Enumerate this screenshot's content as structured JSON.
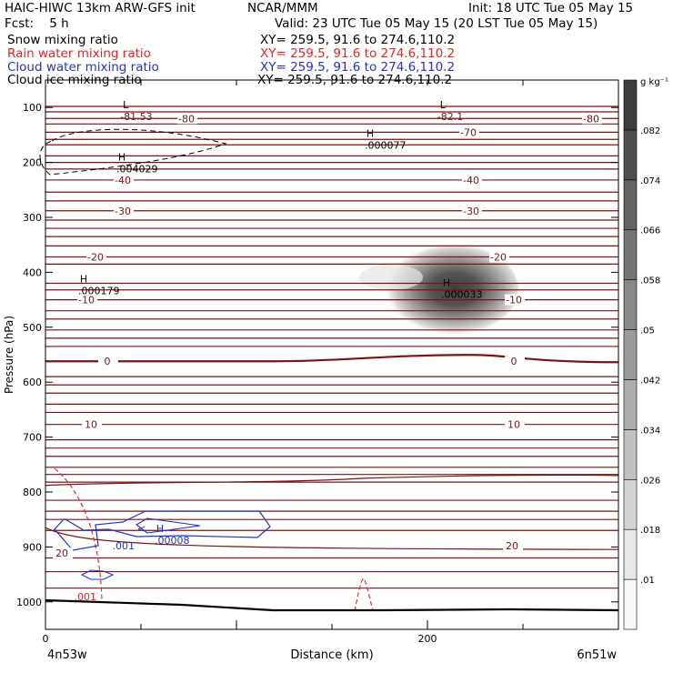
{
  "header": {
    "model": "HAIC-HIWC 13km ARW-GFS init",
    "org": "NCAR/MMM",
    "init": "Init: 18 UTC Tue 05 May 15",
    "fcst": "Fcst:    5 h",
    "valid": "Valid: 23 UTC Tue 05 May 15 (20 LST Tue 05 May 15)",
    "fields": [
      {
        "name": "Snow mixing ratio",
        "xy": "XY= 259.5, 91.6 to 274.6,110.2",
        "color": "#000000"
      },
      {
        "name": "Rain water mixing ratio",
        "xy": "XY= 259.5, 91.6 to 274.6,110.2",
        "color": "#ee2222"
      },
      {
        "name": "Cloud water mixing ratio",
        "xy": "XY= 259.5, 91.6 to 274.6,110.2",
        "color": "#2233cc"
      },
      {
        "name": "Cloud ice mixing ratio",
        "xy": "XY= 259.5, 91.6 to 274.6,110.2",
        "color": "#000000"
      }
    ]
  },
  "chart_data": {
    "type": "heatmap",
    "xlabel": "Distance (km)",
    "ylabel": "Pressure (hPa)",
    "xlim": [
      0,
      300
    ],
    "ylim": [
      1050,
      50
    ],
    "x_ticks": [
      0,
      200
    ],
    "y_ticks": [
      100,
      200,
      300,
      400,
      500,
      600,
      700,
      800,
      900,
      1000
    ],
    "x_start_label": "4n53w",
    "x_end_label": "6n51w",
    "colorbar": {
      "unit": "g kg⁻¹",
      "levels": [
        ".01",
        ".018",
        ".026",
        ".034",
        ".042",
        ".05",
        ".058",
        ".066",
        ".074",
        ".082"
      ]
    },
    "temperature_contours": [
      {
        "label": "-80",
        "p": 120
      },
      {
        "label": "-70",
        "p": 145
      },
      {
        "label": "-40",
        "p": 232
      },
      {
        "label": "-30",
        "p": 288
      },
      {
        "label": "-20",
        "p": 372
      },
      {
        "label": "-10",
        "p": 450
      },
      {
        "label": "0",
        "p": 562
      },
      {
        "label": "10",
        "p": 677
      },
      {
        "label": "20",
        "p": 898
      }
    ],
    "extrema": [
      {
        "type": "L",
        "value": "-81.53",
        "x": 42,
        "p": 88
      },
      {
        "type": "L",
        "value": "-82.1",
        "x": 208,
        "p": 88
      },
      {
        "type": "H",
        "value": ".000077",
        "x": 170,
        "p": 140
      },
      {
        "type": "H",
        "value": ".004029",
        "x": 40,
        "p": 183
      },
      {
        "type": "H",
        "value": ".000179",
        "x": 20,
        "p": 405
      },
      {
        "type": "H",
        "value": ".000033",
        "x": 210,
        "p": 412
      },
      {
        "type": "H",
        "value": ".00008",
        "x": 60,
        "p": 860
      }
    ],
    "contour_labels": [
      {
        "value": ".001",
        "x": 35,
        "p": 898,
        "color": "#2233cc"
      },
      {
        "value": ".001",
        "x": 15,
        "p": 990,
        "color": "#ee2222"
      }
    ],
    "shaded_maximum": {
      "x": 210,
      "p": 425,
      "value": ".082"
    }
  }
}
